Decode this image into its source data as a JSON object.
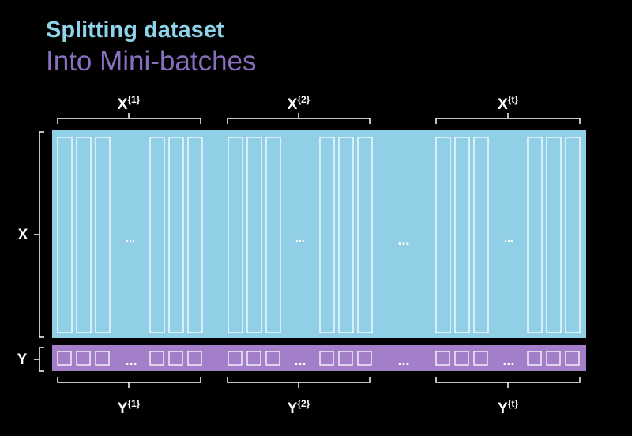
{
  "header": {
    "title": "Splitting dataset",
    "subtitle": "Into Mini-batches"
  },
  "labels": {
    "x_axis": "X",
    "y_axis": "Y",
    "ellipsis": "...",
    "batch_sup": [
      "{1}",
      "{2}",
      "{t}"
    ]
  },
  "colors": {
    "x_block": "#91cfe6",
    "y_block": "#a37fc9",
    "title": "#8ed3ea",
    "subtitle": "#8a6fc0",
    "background": "#000000"
  }
}
